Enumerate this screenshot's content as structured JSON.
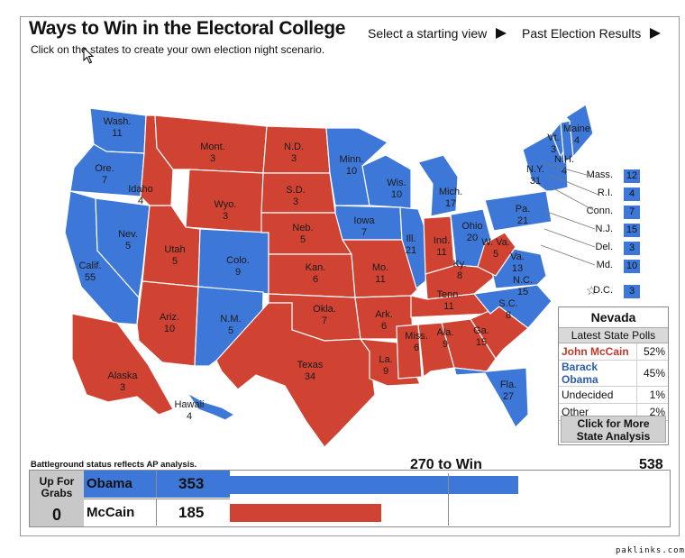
{
  "header": {
    "title": "Ways to Win in the Electoral College",
    "subtitle": "Click on the states to create your own election night scenario.",
    "starting_view": "Select a starting view",
    "past_results": "Past Election Results"
  },
  "colors": {
    "dem": "#3d78d8",
    "rep": "#d04232"
  },
  "states": [
    {
      "abbr": "Wash.",
      "ev": "11",
      "party": "dem"
    },
    {
      "abbr": "Ore.",
      "ev": "7",
      "party": "dem"
    },
    {
      "abbr": "Calif.",
      "ev": "55",
      "party": "dem"
    },
    {
      "abbr": "Nev.",
      "ev": "5",
      "party": "dem"
    },
    {
      "abbr": "Idaho",
      "ev": "4",
      "party": "rep"
    },
    {
      "abbr": "Mont.",
      "ev": "3",
      "party": "rep"
    },
    {
      "abbr": "Wyo.",
      "ev": "3",
      "party": "rep"
    },
    {
      "abbr": "Utah",
      "ev": "5",
      "party": "rep"
    },
    {
      "abbr": "Colo.",
      "ev": "9",
      "party": "dem"
    },
    {
      "abbr": "Ariz.",
      "ev": "10",
      "party": "rep"
    },
    {
      "abbr": "N.M.",
      "ev": "5",
      "party": "dem"
    },
    {
      "abbr": "N.D.",
      "ev": "3",
      "party": "rep"
    },
    {
      "abbr": "S.D.",
      "ev": "3",
      "party": "rep"
    },
    {
      "abbr": "Neb.",
      "ev": "5",
      "party": "rep"
    },
    {
      "abbr": "Kan.",
      "ev": "6",
      "party": "rep"
    },
    {
      "abbr": "Okla.",
      "ev": "7",
      "party": "rep"
    },
    {
      "abbr": "Texas",
      "ev": "34",
      "party": "rep"
    },
    {
      "abbr": "Minn.",
      "ev": "10",
      "party": "dem"
    },
    {
      "abbr": "Iowa",
      "ev": "7",
      "party": "dem"
    },
    {
      "abbr": "Mo.",
      "ev": "11",
      "party": "rep"
    },
    {
      "abbr": "Ark.",
      "ev": "6",
      "party": "rep"
    },
    {
      "abbr": "La.",
      "ev": "9",
      "party": "rep"
    },
    {
      "abbr": "Wis.",
      "ev": "10",
      "party": "dem"
    },
    {
      "abbr": "Ill.",
      "ev": "21",
      "party": "dem"
    },
    {
      "abbr": "Mich.",
      "ev": "17",
      "party": "dem"
    },
    {
      "abbr": "Ind.",
      "ev": "11",
      "party": "rep"
    },
    {
      "abbr": "Ohio",
      "ev": "20",
      "party": "dem"
    },
    {
      "abbr": "Ky.",
      "ev": "8",
      "party": "rep"
    },
    {
      "abbr": "Tenn.",
      "ev": "11",
      "party": "rep"
    },
    {
      "abbr": "Miss.",
      "ev": "6",
      "party": "rep"
    },
    {
      "abbr": "Ala.",
      "ev": "9",
      "party": "rep"
    },
    {
      "abbr": "Ga.",
      "ev": "15",
      "party": "rep"
    },
    {
      "abbr": "Fla.",
      "ev": "27",
      "party": "dem"
    },
    {
      "abbr": "S.C.",
      "ev": "8",
      "party": "rep"
    },
    {
      "abbr": "N.C.",
      "ev": "15",
      "party": "dem"
    },
    {
      "abbr": "Va.",
      "ev": "13",
      "party": "dem"
    },
    {
      "abbr": "W. Va.",
      "ev": "5",
      "party": "rep"
    },
    {
      "abbr": "Pa.",
      "ev": "21",
      "party": "dem"
    },
    {
      "abbr": "N.Y.",
      "ev": "31",
      "party": "dem"
    },
    {
      "abbr": "Vt.",
      "ev": "3",
      "party": "dem"
    },
    {
      "abbr": "N.H.",
      "ev": "4",
      "party": "dem"
    },
    {
      "abbr": "Maine",
      "ev": "4",
      "party": "dem"
    },
    {
      "abbr": "Alaska",
      "ev": "3",
      "party": "rep"
    },
    {
      "abbr": "Hawaii",
      "ev": "4",
      "party": "dem"
    }
  ],
  "small_states": [
    {
      "abbr": "Mass.",
      "ev": "12"
    },
    {
      "abbr": "R.I.",
      "ev": "4"
    },
    {
      "abbr": "Conn.",
      "ev": "7"
    },
    {
      "abbr": "N.J.",
      "ev": "15"
    },
    {
      "abbr": "Del.",
      "ev": "3"
    },
    {
      "abbr": "Md.",
      "ev": "10"
    },
    {
      "abbr": "D.C.",
      "ev": "3"
    }
  ],
  "poll": {
    "state": "Nevada",
    "subtitle": "Latest State Polls",
    "rows": [
      {
        "name": "John McCain",
        "pct": "52%"
      },
      {
        "name": "Barack Obama",
        "pct": "45%"
      },
      {
        "name": "Undecided",
        "pct": "1%"
      },
      {
        "name": "Other",
        "pct": "2%"
      }
    ],
    "more_label_1": "Click for More",
    "more_label_2": "State Analysis"
  },
  "totals": {
    "battleground_note": "Battleground status reflects AP analysis.",
    "up_for_grabs_label_1": "Up For",
    "up_for_grabs_label_2": "Grabs",
    "up_for_grabs_value": "0",
    "obama_label": "Obama",
    "obama_votes": "353",
    "mccain_label": "McCain",
    "mccain_votes": "185",
    "to_win_label": "270 to Win",
    "total_label": "538"
  },
  "credit": "paklinks.com"
}
